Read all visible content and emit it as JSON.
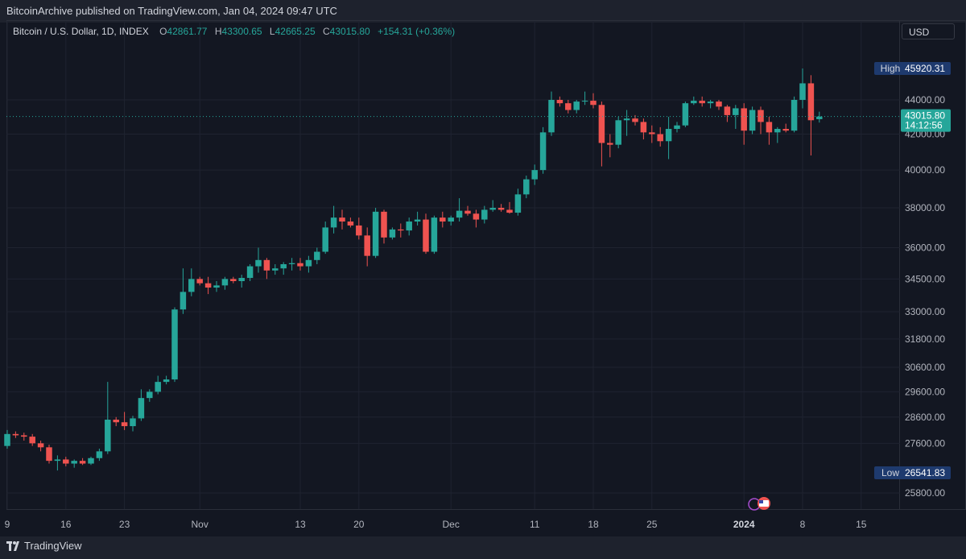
{
  "header": {
    "publisher_line": "BitcoinArchive published on TradingView.com, Jan 04, 2024 09:47 UTC"
  },
  "legend": {
    "symbol": "Bitcoin / U.S. Dollar, 1D, INDEX",
    "open_label": "O",
    "open": "42861.77",
    "high_label": "H",
    "high": "43300.65",
    "low_label": "L",
    "low": "42665.25",
    "close_label": "C",
    "close": "43015.80",
    "change": "+154.31 (+0.36%)"
  },
  "currency": "USD",
  "markers": {
    "high_label": "High",
    "high_value": "45920.31",
    "low_label": "Low",
    "low_value": "26541.83",
    "last_price": "43015.80",
    "countdown": "14:12:56"
  },
  "footer": {
    "brand": "TradingView"
  },
  "colors": {
    "up": "#26a69a",
    "down": "#ef5350",
    "background": "#131722",
    "grid": "#1f2330",
    "marker": "#1e3a6e"
  },
  "chart_data": {
    "type": "candlestick",
    "y_ticks": [
      25800,
      27600,
      28600,
      29600,
      30600,
      31800,
      33000,
      34500,
      36000,
      38000,
      40000,
      42000,
      44000
    ],
    "y_tick_labels": [
      "25800.00",
      "27600.00",
      "28600.00",
      "29600.00",
      "30600.00",
      "31800.00",
      "33000.00",
      "34500.00",
      "36000.00",
      "38000.00",
      "40000.00",
      "42000.00",
      "44000.00"
    ],
    "x_tick_labels": [
      "9",
      "16",
      "23",
      "Nov",
      "13",
      "20",
      "Dec",
      "11",
      "18",
      "25",
      "2024",
      "8",
      "15"
    ],
    "x_tick_days": [
      0,
      7,
      14,
      23,
      35,
      42,
      53,
      63,
      70,
      77,
      88,
      95,
      102
    ],
    "y_scale": "log",
    "ohlc": [
      [
        27500,
        28100,
        27400,
        27950
      ],
      [
        27950,
        28050,
        27800,
        27900
      ],
      [
        27900,
        28000,
        27700,
        27850
      ],
      [
        27850,
        27950,
        27500,
        27600
      ],
      [
        27600,
        27700,
        27300,
        27450
      ],
      [
        27450,
        27550,
        26850,
        26950
      ],
      [
        26950,
        27150,
        26600,
        27000
      ],
      [
        27000,
        27100,
        26750,
        26850
      ],
      [
        26850,
        27000,
        26700,
        26950
      ],
      [
        26950,
        27050,
        26800,
        26850
      ],
      [
        26850,
        27100,
        26800,
        27050
      ],
      [
        27050,
        27400,
        26950,
        27300
      ],
      [
        27300,
        30000,
        27200,
        28500
      ],
      [
        28500,
        28600,
        28250,
        28400
      ],
      [
        28400,
        28800,
        28100,
        28250
      ],
      [
        28250,
        28650,
        28050,
        28550
      ],
      [
        28550,
        29700,
        28450,
        29350
      ],
      [
        29350,
        29700,
        29200,
        29600
      ],
      [
        29600,
        30250,
        29500,
        30000
      ],
      [
        30000,
        30250,
        29900,
        30100
      ],
      [
        30100,
        33200,
        30000,
        33100
      ],
      [
        33100,
        35000,
        32900,
        33900
      ],
      [
        33900,
        35000,
        33700,
        34500
      ],
      [
        34500,
        34600,
        34200,
        34300
      ],
      [
        34300,
        34600,
        33800,
        34100
      ],
      [
        34100,
        34400,
        33900,
        34200
      ],
      [
        34200,
        34600,
        34000,
        34500
      ],
      [
        34500,
        34600,
        34300,
        34400
      ],
      [
        34400,
        34700,
        34100,
        34550
      ],
      [
        34550,
        35200,
        34400,
        35100
      ],
      [
        35100,
        36000,
        34800,
        35400
      ],
      [
        35400,
        35500,
        34500,
        34900
      ],
      [
        34900,
        35200,
        34700,
        35000
      ],
      [
        35000,
        35300,
        34700,
        35200
      ],
      [
        35200,
        35500,
        34900,
        35250
      ],
      [
        35250,
        35500,
        34900,
        35100
      ],
      [
        35100,
        35600,
        34800,
        35400
      ],
      [
        35400,
        36000,
        35200,
        35800
      ],
      [
        35800,
        37300,
        35700,
        37000
      ],
      [
        37000,
        38100,
        36700,
        37500
      ],
      [
        37500,
        37900,
        36900,
        37300
      ],
      [
        37300,
        37500,
        37000,
        37100
      ],
      [
        37100,
        37500,
        36400,
        36600
      ],
      [
        36600,
        37000,
        35100,
        35600
      ],
      [
        35600,
        38000,
        35500,
        37800
      ],
      [
        37800,
        37900,
        36200,
        36500
      ],
      [
        36500,
        37000,
        36400,
        36900
      ],
      [
        36900,
        37200,
        36500,
        36850
      ],
      [
        36850,
        37500,
        36600,
        37300
      ],
      [
        37300,
        37800,
        37100,
        37400
      ],
      [
        37400,
        37700,
        35700,
        35800
      ],
      [
        35800,
        37600,
        35700,
        37500
      ],
      [
        37500,
        37800,
        37000,
        37300
      ],
      [
        37300,
        37600,
        37100,
        37500
      ],
      [
        37500,
        38500,
        37300,
        37850
      ],
      [
        37850,
        38100,
        37600,
        37700
      ],
      [
        37700,
        37900,
        37000,
        37400
      ],
      [
        37400,
        38100,
        37200,
        37900
      ],
      [
        37900,
        38400,
        37800,
        38000
      ],
      [
        38000,
        38200,
        37800,
        37900
      ],
      [
        37900,
        38300,
        37700,
        37750
      ],
      [
        37750,
        39000,
        37600,
        38700
      ],
      [
        38700,
        39700,
        38500,
        39500
      ],
      [
        39500,
        40300,
        39200,
        40000
      ],
      [
        40000,
        42400,
        39800,
        42100
      ],
      [
        42100,
        44500,
        41900,
        44000
      ],
      [
        44000,
        44200,
        43600,
        43800
      ],
      [
        43800,
        44000,
        43200,
        43400
      ],
      [
        43400,
        44000,
        43200,
        43900
      ],
      [
        43900,
        44500,
        43700,
        43950
      ],
      [
        43950,
        44400,
        43500,
        43700
      ],
      [
        43700,
        43900,
        40200,
        41500
      ],
      [
        41500,
        42000,
        40700,
        41400
      ],
      [
        41400,
        43000,
        41200,
        42800
      ],
      [
        42800,
        43400,
        41900,
        42900
      ],
      [
        42900,
        43100,
        42500,
        42700
      ],
      [
        42700,
        42900,
        41700,
        42100
      ],
      [
        42100,
        42500,
        41500,
        42000
      ],
      [
        42000,
        42400,
        41300,
        41600
      ],
      [
        41600,
        43000,
        40600,
        42300
      ],
      [
        42300,
        42700,
        42100,
        42500
      ],
      [
        42500,
        43900,
        42400,
        43800
      ],
      [
        43800,
        44200,
        43700,
        43950
      ],
      [
        43950,
        44200,
        43600,
        43800
      ],
      [
        43800,
        44000,
        43500,
        43900
      ],
      [
        43900,
        44000,
        43400,
        43600
      ],
      [
        43600,
        43700,
        42700,
        43100
      ],
      [
        43100,
        43700,
        42300,
        43500
      ],
      [
        43500,
        43800,
        41400,
        42200
      ],
      [
        42200,
        43600,
        42000,
        43400
      ],
      [
        43400,
        43600,
        42000,
        42700
      ],
      [
        42700,
        43000,
        41400,
        42100
      ],
      [
        42100,
        42400,
        41500,
        42300
      ],
      [
        42300,
        42600,
        42100,
        42200
      ],
      [
        42200,
        44200,
        42100,
        44000
      ],
      [
        44000,
        45920,
        43500,
        45000
      ],
      [
        45000,
        45500,
        40800,
        42800
      ],
      [
        42861.77,
        43300.65,
        42665.25,
        43015.8
      ]
    ]
  }
}
